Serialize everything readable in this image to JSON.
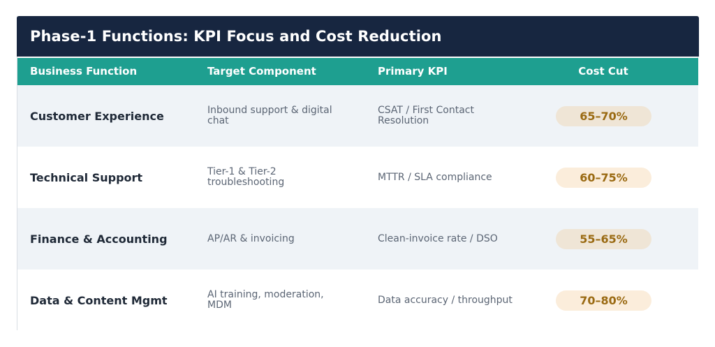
{
  "title": "Phase-1 Functions: KPI Focus and Cost Reduction",
  "columns": {
    "function": "Business Function",
    "component": "Target Component",
    "kpi": "Primary KPI",
    "cost": "Cost Cut"
  },
  "rows": [
    {
      "function": "Customer Experience",
      "component": "Inbound support & digital chat",
      "kpi": "CSAT / First Contact Resolution",
      "cost": "65–70%"
    },
    {
      "function": "Technical Support",
      "component": "Tier-1 & Tier-2 troubleshooting",
      "kpi": "MTTR / SLA compliance",
      "cost": "60–75%"
    },
    {
      "function": "Finance & Accounting",
      "component": "AP/AR & invoicing",
      "kpi": "Clean-invoice rate / DSO",
      "cost": "55–65%"
    },
    {
      "function": "Data & Content Mgmt",
      "component": "AI training, moderation, MDM",
      "kpi": "Data accuracy / throughput",
      "cost": "70–80%"
    }
  ],
  "colors": {
    "title_bg": "#172640",
    "header_bg": "#1e9f90",
    "row_alt_bg": "#eff3f7",
    "pill_text": "#9a6a12",
    "pill_bg": "#fbeddb"
  }
}
